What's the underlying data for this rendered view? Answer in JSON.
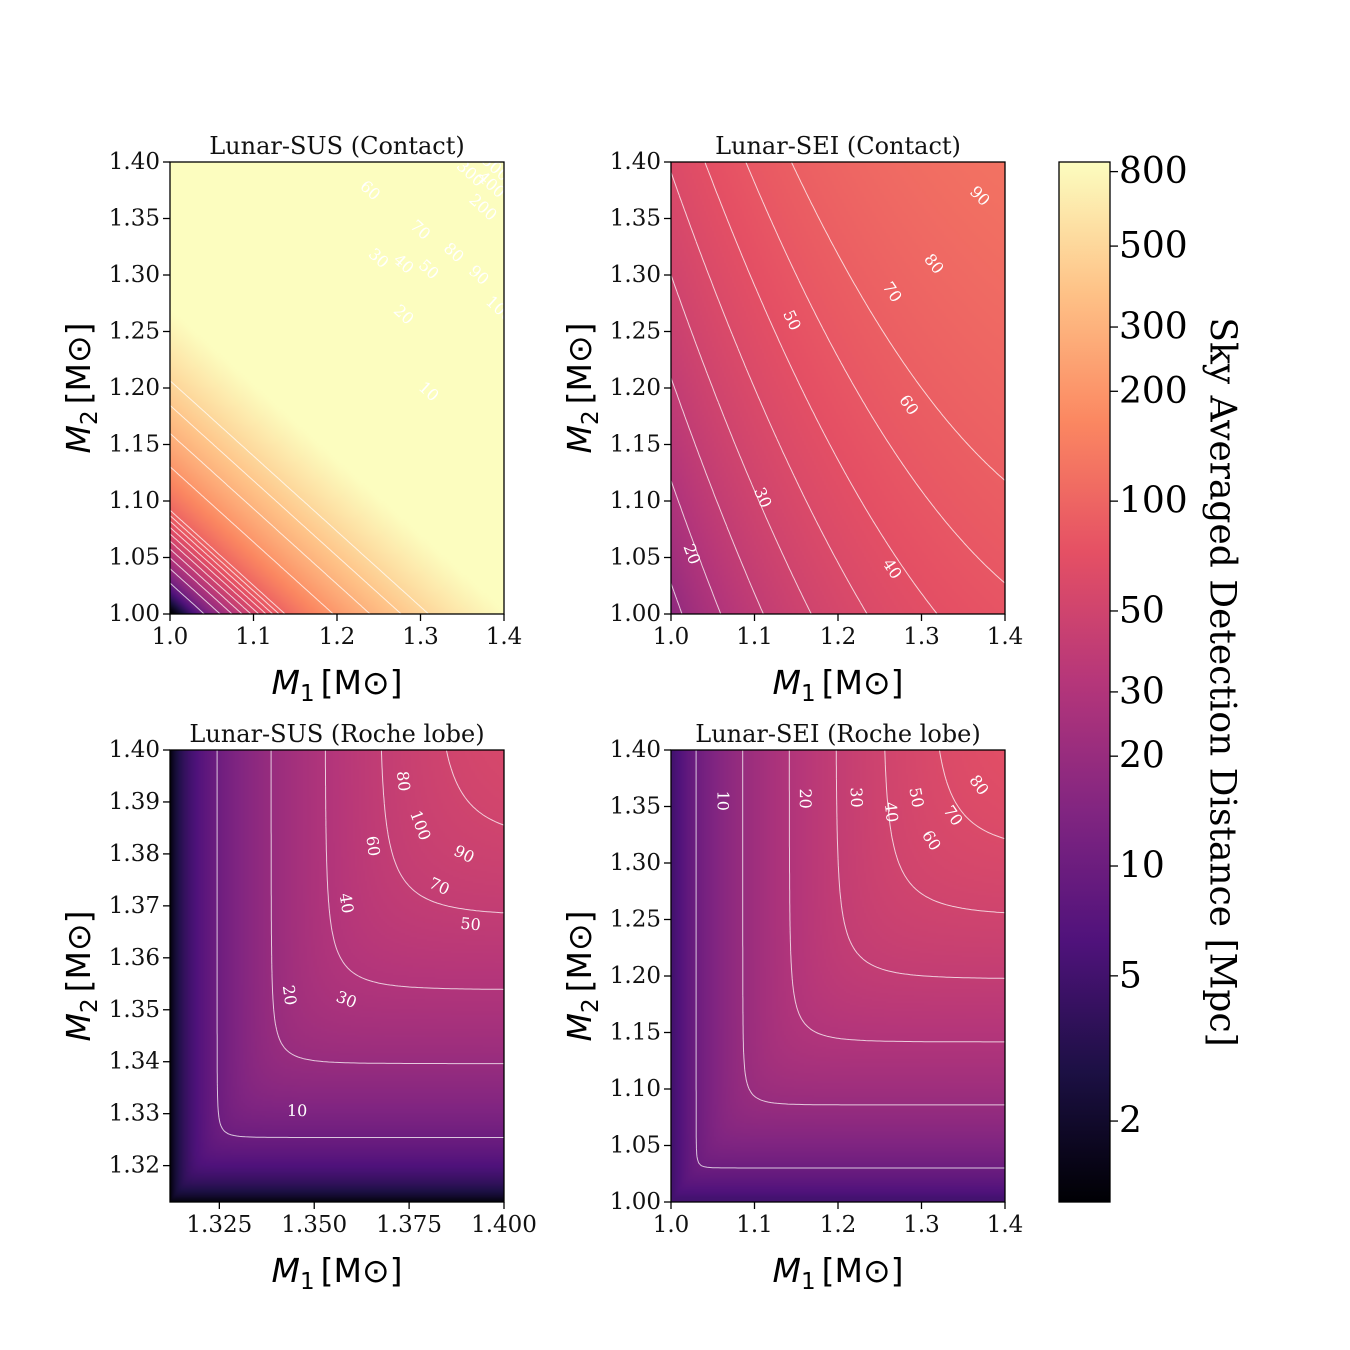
{
  "chart_data": [
    {
      "type": "heatmap",
      "title": "Lunar-SUS (Contact)",
      "xlabel_var": "M",
      "xlabel_sub": "1",
      "xlabel_unit": "[M⊙]",
      "ylabel_var": "M",
      "ylabel_sub": "2",
      "ylabel_unit": "[M⊙]",
      "xlim": [
        1.0,
        1.4
      ],
      "ylim": [
        1.0,
        1.4
      ],
      "xticks": [
        "1.0",
        "1.1",
        "1.2",
        "1.3",
        "1.4"
      ],
      "yticks": [
        "1.00",
        "1.05",
        "1.10",
        "1.15",
        "1.20",
        "1.25",
        "1.30",
        "1.35",
        "1.40"
      ],
      "region": "upper-triangle",
      "model": "contact-sus",
      "contour_levels": [
        10,
        20,
        30,
        40,
        50,
        60,
        70,
        80,
        90,
        100,
        200,
        300,
        400,
        500
      ],
      "contour_labels": [
        {
          "text": "10",
          "x": 1.31,
          "y": 1.197
        },
        {
          "text": "20",
          "x": 1.28,
          "y": 1.265
        },
        {
          "text": "30",
          "x": 1.25,
          "y": 1.315
        },
        {
          "text": "40",
          "x": 1.28,
          "y": 1.31
        },
        {
          "text": "50",
          "x": 1.31,
          "y": 1.305
        },
        {
          "text": "60",
          "x": 1.24,
          "y": 1.375
        },
        {
          "text": "70",
          "x": 1.3,
          "y": 1.34
        },
        {
          "text": "80",
          "x": 1.34,
          "y": 1.32
        },
        {
          "text": "90",
          "x": 1.37,
          "y": 1.3
        },
        {
          "text": "100",
          "x": 1.395,
          "y": 1.27
        },
        {
          "text": "200",
          "x": 1.375,
          "y": 1.36
        },
        {
          "text": "300",
          "x": 1.36,
          "y": 1.39
        },
        {
          "text": "400",
          "x": 1.385,
          "y": 1.38
        },
        {
          "text": "500",
          "x": 1.39,
          "y": 1.395
        }
      ]
    },
    {
      "type": "heatmap",
      "title": "Lunar-SEI (Contact)",
      "xlabel_var": "M",
      "xlabel_sub": "1",
      "xlabel_unit": "[M⊙]",
      "ylabel_var": "M",
      "ylabel_sub": "2",
      "ylabel_unit": "[M⊙]",
      "xlim": [
        1.0,
        1.4
      ],
      "ylim": [
        1.0,
        1.4
      ],
      "xticks": [
        "1.0",
        "1.1",
        "1.2",
        "1.3",
        "1.4"
      ],
      "yticks": [
        "1.00",
        "1.05",
        "1.10",
        "1.15",
        "1.20",
        "1.25",
        "1.30",
        "1.35",
        "1.40"
      ],
      "region": "full",
      "model": "contact-sei",
      "contour_levels": [
        20,
        30,
        40,
        50,
        60,
        70,
        80,
        90
      ],
      "contour_labels": [
        {
          "text": "20",
          "x": 1.025,
          "y": 1.053
        },
        {
          "text": "30",
          "x": 1.11,
          "y": 1.103
        },
        {
          "text": "40",
          "x": 1.265,
          "y": 1.04
        },
        {
          "text": "50",
          "x": 1.145,
          "y": 1.26
        },
        {
          "text": "60",
          "x": 1.285,
          "y": 1.185
        },
        {
          "text": "70",
          "x": 1.265,
          "y": 1.285
        },
        {
          "text": "80",
          "x": 1.315,
          "y": 1.31
        },
        {
          "text": "90",
          "x": 1.37,
          "y": 1.37
        }
      ]
    },
    {
      "type": "heatmap",
      "title": "Lunar-SUS (Roche lobe)",
      "xlabel_var": "M",
      "xlabel_sub": "1",
      "xlabel_unit": "[M⊙]",
      "ylabel_var": "M",
      "ylabel_sub": "2",
      "ylabel_unit": "[M⊙]",
      "xlim": [
        1.312,
        1.4
      ],
      "ylim": [
        1.313,
        1.4
      ],
      "xtick_values": [
        1.325,
        1.35,
        1.375,
        1.4
      ],
      "xticks": [
        "1.325",
        "1.350",
        "1.375",
        "1.400"
      ],
      "ytick_values": [
        1.32,
        1.33,
        1.34,
        1.35,
        1.36,
        1.37,
        1.38,
        1.39,
        1.4
      ],
      "yticks": [
        "1.32",
        "1.33",
        "1.34",
        "1.35",
        "1.36",
        "1.37",
        "1.38",
        "1.39",
        "1.40"
      ],
      "region": "full",
      "model": "roche-sus",
      "contour_levels": [
        10,
        20,
        30,
        40,
        50,
        60,
        70,
        80,
        90,
        100
      ],
      "contour_labels": [
        {
          "text": "10",
          "x": 1.3455,
          "y": 1.3306
        },
        {
          "text": "20",
          "x": 1.3435,
          "y": 1.3528
        },
        {
          "text": "30",
          "x": 1.3585,
          "y": 1.352
        },
        {
          "text": "40",
          "x": 1.3585,
          "y": 1.3705
        },
        {
          "text": "50",
          "x": 1.3912,
          "y": 1.3665
        },
        {
          "text": "60",
          "x": 1.3655,
          "y": 1.3815
        },
        {
          "text": "70",
          "x": 1.383,
          "y": 1.3738
        },
        {
          "text": "80",
          "x": 1.3735,
          "y": 1.394
        },
        {
          "text": "90",
          "x": 1.3895,
          "y": 1.38
        },
        {
          "text": "100",
          "x": 1.378,
          "y": 1.3855
        }
      ]
    },
    {
      "type": "heatmap",
      "title": "Lunar-SEI (Roche lobe)",
      "xlabel_var": "M",
      "xlabel_sub": "1",
      "xlabel_unit": "[M⊙]",
      "ylabel_var": "M",
      "ylabel_sub": "2",
      "ylabel_unit": "[M⊙]",
      "xlim": [
        1.0,
        1.4
      ],
      "ylim": [
        1.0,
        1.4
      ],
      "xticks": [
        "1.0",
        "1.1",
        "1.2",
        "1.3",
        "1.4"
      ],
      "yticks": [
        "1.00",
        "1.05",
        "1.10",
        "1.15",
        "1.20",
        "1.25",
        "1.30",
        "1.35",
        "1.40"
      ],
      "region": "full",
      "model": "roche-sei",
      "contour_levels": [
        10,
        20,
        30,
        40,
        50,
        60,
        70,
        80
      ],
      "contour_labels": [
        {
          "text": "10",
          "x": 1.062,
          "y": 1.355
        },
        {
          "text": "20",
          "x": 1.161,
          "y": 1.357
        },
        {
          "text": "30",
          "x": 1.222,
          "y": 1.358
        },
        {
          "text": "40",
          "x": 1.264,
          "y": 1.345
        },
        {
          "text": "50",
          "x": 1.294,
          "y": 1.358
        },
        {
          "text": "60",
          "x": 1.312,
          "y": 1.32
        },
        {
          "text": "70",
          "x": 1.338,
          "y": 1.342
        },
        {
          "text": "80",
          "x": 1.369,
          "y": 1.369
        }
      ]
    }
  ],
  "colorbar": {
    "label": "Sky Averaged Detection Distance [Mpc]",
    "scale": "log",
    "range": [
      1.2,
      850
    ],
    "tick_values": [
      2,
      5,
      10,
      20,
      30,
      50,
      100,
      200,
      300,
      500,
      800
    ],
    "tick_labels": [
      "2",
      "5",
      "10",
      "20",
      "30",
      "50",
      "100",
      "200",
      "300",
      "500",
      "800"
    ],
    "colormap": "magma",
    "stops": [
      "#000004",
      "#1c1044",
      "#4f127b",
      "#812581",
      "#b5367a",
      "#e55064",
      "#fb8761",
      "#fec287",
      "#fcfdbf"
    ]
  }
}
